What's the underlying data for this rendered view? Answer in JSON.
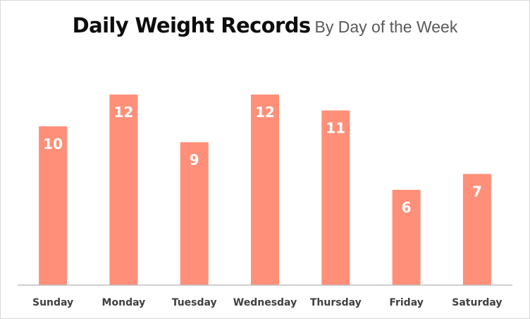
{
  "chart_data": {
    "type": "bar",
    "title": "Daily Weight Records",
    "subtitle": "By Day of the Week",
    "categories": [
      "Sunday",
      "Monday",
      "Tuesday",
      "Wednesday",
      "Thursday",
      "Friday",
      "Saturday"
    ],
    "values": [
      10,
      12,
      9,
      12,
      11,
      6,
      7
    ],
    "xlabel": "",
    "ylabel": "",
    "ylim": [
      0,
      12
    ],
    "grid": false,
    "legend": "none",
    "colors": {
      "bar": "#ff8f79",
      "axis": "#bfbfbf",
      "data_label": "#ffffff",
      "tick_label": "#404040"
    }
  }
}
